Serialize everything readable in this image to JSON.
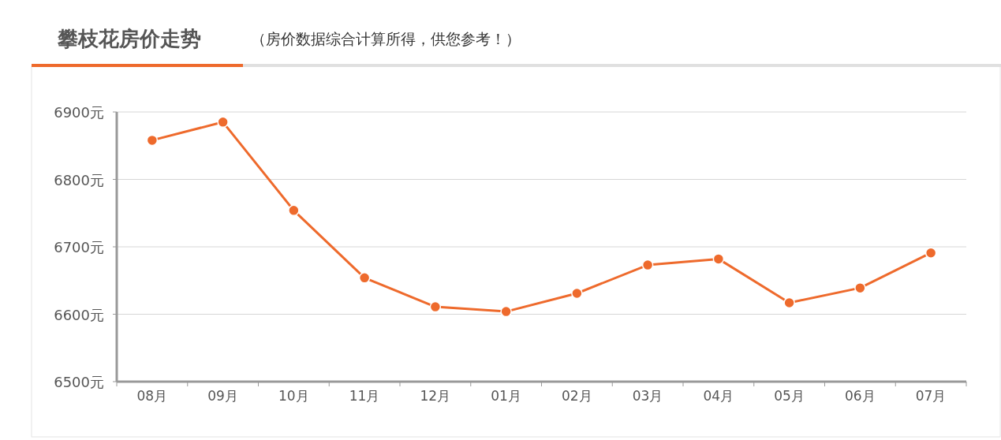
{
  "chart_data": {
    "type": "line",
    "title": "攀枝花房价走势",
    "subtitle": "（房价数据综合计算所得，供您参考！）",
    "categories": [
      "08月",
      "09月",
      "10月",
      "11月",
      "12月",
      "01月",
      "02月",
      "03月",
      "04月",
      "05月",
      "06月",
      "07月"
    ],
    "series": [
      {
        "color": "#ee6a2c",
        "values": [
          6858,
          6885,
          6754,
          6654,
          6611,
          6604,
          6631,
          6673,
          6682,
          6617,
          6639,
          6691
        ]
      }
    ],
    "ylim": [
      6500,
      6900
    ],
    "yticks": [
      {
        "value": 6500,
        "label": "6500元"
      },
      {
        "value": 6600,
        "label": "6600元"
      },
      {
        "value": 6700,
        "label": "6700元"
      },
      {
        "value": 6800,
        "label": "6800元"
      },
      {
        "value": 6900,
        "label": "6900元"
      }
    ],
    "grid": "y",
    "marker": "circle",
    "line_style": "solid"
  }
}
